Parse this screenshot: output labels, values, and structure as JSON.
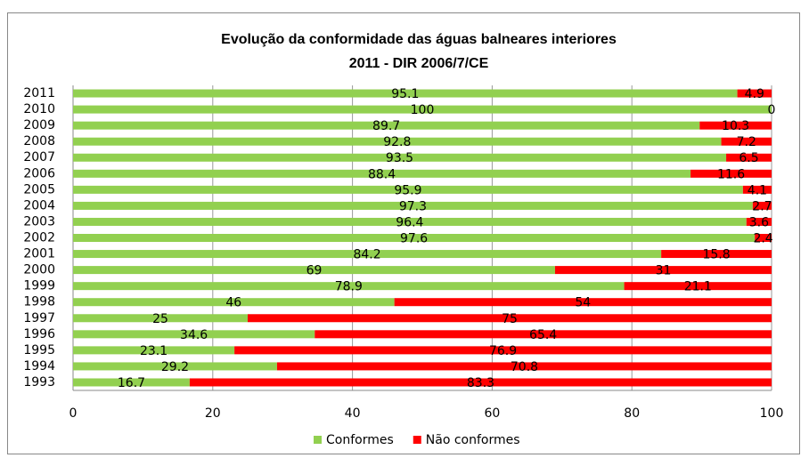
{
  "chart_data": {
    "type": "stacked-barh",
    "title": "Evolução da conformidade das águas balneares interiores",
    "subtitle": "2011 - DIR 2006/7/CE",
    "categories": [
      "2011",
      "2010",
      "2009",
      "2008",
      "2007",
      "2006",
      "2005",
      "2004",
      "2003",
      "2002",
      "2001",
      "2000",
      "1999",
      "1998",
      "1997",
      "1996",
      "1995",
      "1994",
      "1993"
    ],
    "series": [
      {
        "name": "Conformes",
        "color": "#92d050",
        "values": [
          95.1,
          100,
          89.7,
          92.8,
          93.5,
          88.4,
          95.9,
          97.3,
          96.4,
          97.6,
          84.2,
          69,
          78.9,
          46,
          25,
          34.6,
          23.1,
          29.2,
          16.7
        ]
      },
      {
        "name": "Não conformes",
        "color": "#ff0000",
        "values": [
          4.9,
          0,
          10.3,
          7.2,
          6.5,
          11.6,
          4.1,
          2.7,
          3.6,
          2.4,
          15.8,
          31,
          21.1,
          54,
          75,
          65.4,
          76.9,
          70.8,
          83.3
        ]
      }
    ],
    "xlim": [
      0,
      100
    ],
    "xticks": [
      0,
      20,
      40,
      60,
      80,
      100
    ],
    "grid": true,
    "legend": "bottom"
  }
}
